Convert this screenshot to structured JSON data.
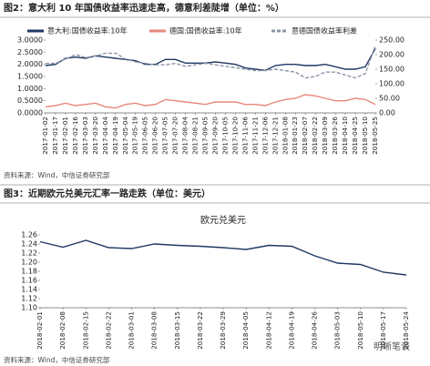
{
  "chart_data": [
    {
      "type": "line",
      "caption": "图2：意大利 10 年国债收益率迅速走高，德意利差陡增（单位：%）",
      "source": "资料来源：Wind，中信证券研究部",
      "legend": "top",
      "categories": [
        "2017-01-02",
        "2017-01-17",
        "2017-02-01",
        "2017-02-16",
        "2017-03-03",
        "2017-03-20",
        "2017-04-04",
        "2017-04-19",
        "2017-05-04",
        "2017-05-19",
        "2017-06-05",
        "2017-06-20",
        "2017-07-05",
        "2017-07-20",
        "2017-08-04",
        "2017-08-21",
        "2017-09-05",
        "2017-09-20",
        "2017-10-05",
        "2017-10-20",
        "2017-11-06",
        "2017-11-21",
        "2017-12-06",
        "2017-12-21",
        "2018-01-08",
        "2018-01-23",
        "2018-02-07",
        "2018-02-22",
        "2018-03-09",
        "2018-03-26",
        "2018-04-10",
        "2018-04-25",
        "2018-05-10",
        "2018-05-25"
      ],
      "series": [
        {
          "name": "意大利:国债收益率:10年",
          "color": "#1f3864",
          "style": "solid",
          "axis": "y",
          "values": [
            1.95,
            2.0,
            2.25,
            2.3,
            2.25,
            2.35,
            2.3,
            2.25,
            2.2,
            2.15,
            2.0,
            2.0,
            2.2,
            2.2,
            2.05,
            2.05,
            2.05,
            2.1,
            2.05,
            2.0,
            1.85,
            1.8,
            1.75,
            1.95,
            2.0,
            2.0,
            1.95,
            1.95,
            2.0,
            1.9,
            1.8,
            1.8,
            1.9,
            2.65
          ]
        },
        {
          "name": "德国:国债收益率:10年",
          "color": "#e8877c",
          "style": "solid",
          "axis": "y",
          "values": [
            0.25,
            0.3,
            0.4,
            0.3,
            0.35,
            0.4,
            0.25,
            0.2,
            0.35,
            0.4,
            0.3,
            0.35,
            0.55,
            0.5,
            0.45,
            0.4,
            0.35,
            0.45,
            0.45,
            0.45,
            0.35,
            0.35,
            0.3,
            0.45,
            0.55,
            0.6,
            0.75,
            0.7,
            0.6,
            0.5,
            0.5,
            0.6,
            0.55,
            0.35
          ]
        },
        {
          "name": "意德国债收益率利差",
          "color": "#8c95a6",
          "style": "dashed",
          "axis": "y2",
          "values": [
            170,
            170,
            185,
            200,
            190,
            195,
            205,
            205,
            185,
            175,
            170,
            165,
            165,
            170,
            160,
            165,
            170,
            165,
            160,
            155,
            150,
            145,
            145,
            150,
            145,
            140,
            120,
            125,
            140,
            140,
            130,
            120,
            135,
            230
          ]
        }
      ],
      "ylim": [
        0,
        3
      ],
      "yticks": [
        {
          "value": 0,
          "label": "0.0000"
        },
        {
          "value": 0.5,
          "label": "0.5000"
        },
        {
          "value": 1,
          "label": "1.0000"
        },
        {
          "value": 1.5,
          "label": "1.5000"
        },
        {
          "value": 2,
          "label": "2.0000"
        },
        {
          "value": 2.5,
          "label": "2.5000"
        },
        {
          "value": 3,
          "label": "3.0000"
        }
      ],
      "y2lim": [
        0,
        250
      ],
      "y2ticks": [
        {
          "value": 0,
          "label": "0.00"
        },
        {
          "value": 50,
          "label": "50.00"
        },
        {
          "value": 100,
          "label": "100.00"
        },
        {
          "value": 150,
          "label": "150.00"
        },
        {
          "value": 200,
          "label": "200.00"
        },
        {
          "value": 250,
          "label": "250.00"
        }
      ]
    },
    {
      "type": "line",
      "caption": "图3：近期欧元兑美元汇率一路走跌（单位：美元）",
      "title": "欧元兑美元",
      "source": "资料来源：Wind，中信证券研究部",
      "categories": [
        "2018-02-01",
        "2018-02-08",
        "2018-02-15",
        "2018-02-22",
        "2018-03-01",
        "2018-03-08",
        "2018-03-15",
        "2018-03-22",
        "2018-03-29",
        "2018-04-05",
        "2018-04-12",
        "2018-04-19",
        "2018-04-26",
        "2018-05-03",
        "2018-05-10",
        "2018-05-17",
        "2018-05-24"
      ],
      "series": [
        {
          "color": "#1f3864",
          "style": "solid",
          "axis": "y",
          "values": [
            1.245,
            1.233,
            1.248,
            1.232,
            1.23,
            1.24,
            1.237,
            1.235,
            1.232,
            1.228,
            1.237,
            1.235,
            1.214,
            1.198,
            1.195,
            1.178,
            1.172
          ]
        }
      ],
      "ylim": [
        1.1,
        1.26
      ],
      "yticks": [
        {
          "value": 1.1,
          "label": "1.10"
        },
        {
          "value": 1.12,
          "label": "1.12"
        },
        {
          "value": 1.14,
          "label": "1.14"
        },
        {
          "value": 1.16,
          "label": "1.16"
        },
        {
          "value": 1.18,
          "label": "1.18"
        },
        {
          "value": 1.2,
          "label": "1.20"
        },
        {
          "value": 1.22,
          "label": "1.22"
        },
        {
          "value": 1.24,
          "label": "1.24"
        },
        {
          "value": 1.26,
          "label": "1.26"
        }
      ]
    }
  ],
  "watermark": "明晰笔谈"
}
